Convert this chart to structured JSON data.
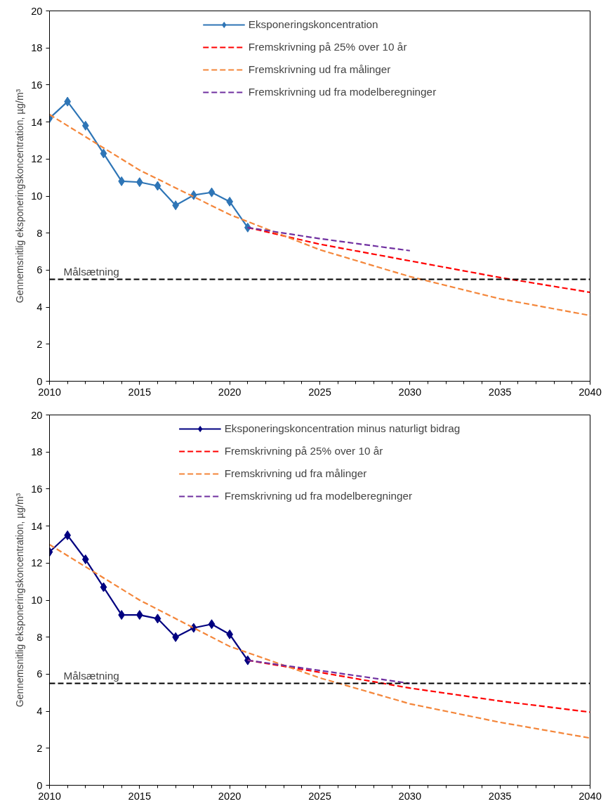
{
  "chart_data": [
    {
      "type": "line",
      "ylabel": "Gennemsnitlig eksponeringskoncentration, µg/m³",
      "xlim": [
        2010,
        2040
      ],
      "xticks": [
        2010,
        2015,
        2020,
        2025,
        2030,
        2035,
        2040
      ],
      "ylim": [
        0,
        20
      ],
      "yticks": [
        0,
        2,
        4,
        6,
        8,
        10,
        12,
        14,
        16,
        18,
        20
      ],
      "grid": false,
      "legend": "top",
      "series": [
        {
          "name": "Eksponeringskoncentration",
          "color": "#2e75b6",
          "marker": "diamond",
          "line_style": "solid",
          "x": [
            2010,
            2011,
            2012,
            2013,
            2014,
            2015,
            2016,
            2017,
            2018,
            2019,
            2020,
            2021
          ],
          "values": [
            14.2,
            15.1,
            13.8,
            12.3,
            10.8,
            10.75,
            10.55,
            9.5,
            10.05,
            10.2,
            9.7,
            8.3
          ]
        },
        {
          "name": "Fremskrivning på 25% over 10 år",
          "color": "#ff0000",
          "marker": "none",
          "line_style": "dashed",
          "x": [
            2021,
            2025,
            2030,
            2035,
            2040
          ],
          "values": [
            8.3,
            7.4,
            6.5,
            5.6,
            4.8
          ]
        },
        {
          "name": "Fremskrivning ud fra målinger",
          "color": "#f4863a",
          "marker": "none",
          "line_style": "dashed",
          "x": [
            2010,
            2015,
            2020,
            2025,
            2030,
            2035,
            2040
          ],
          "values": [
            14.4,
            11.4,
            9.0,
            7.1,
            5.65,
            4.45,
            3.55
          ]
        },
        {
          "name": "Fremskrivning ud fra modelberegninger",
          "color": "#7030a0",
          "marker": "none",
          "line_style": "dashed",
          "x": [
            2021,
            2025,
            2030
          ],
          "values": [
            8.3,
            7.7,
            7.05
          ]
        }
      ],
      "ref_lines": [
        {
          "axis": "y",
          "value": 5.5,
          "label": "Målsætning",
          "color": "#000000",
          "line_style": "dashed"
        }
      ]
    },
    {
      "type": "line",
      "ylabel": "Gennemsnitlig eksponeringskoncentration, µg/m³",
      "xlim": [
        2010,
        2040
      ],
      "xticks": [
        2010,
        2015,
        2020,
        2025,
        2030,
        2035,
        2040
      ],
      "ylim": [
        0,
        20
      ],
      "yticks": [
        0,
        2,
        4,
        6,
        8,
        10,
        12,
        14,
        16,
        18,
        20
      ],
      "grid": false,
      "legend": "top",
      "series": [
        {
          "name": "Eksponeringskoncentration minus naturligt bidrag",
          "color": "#000080",
          "marker": "diamond",
          "line_style": "solid",
          "x": [
            2010,
            2011,
            2012,
            2013,
            2014,
            2015,
            2016,
            2017,
            2018,
            2019,
            2020,
            2021
          ],
          "values": [
            12.6,
            13.5,
            12.2,
            10.7,
            9.2,
            9.2,
            9.0,
            8.0,
            8.5,
            8.7,
            8.15,
            6.75
          ]
        },
        {
          "name": "Fremskrivning på 25% over 10 år",
          "color": "#ff0000",
          "marker": "none",
          "line_style": "dashed",
          "x": [
            2021,
            2025,
            2030,
            2035,
            2040
          ],
          "values": [
            6.75,
            6.1,
            5.25,
            4.55,
            3.95
          ]
        },
        {
          "name": "Fremskrivning ud fra målinger",
          "color": "#f4863a",
          "marker": "none",
          "line_style": "dashed",
          "x": [
            2010,
            2015,
            2020,
            2025,
            2030,
            2035,
            2040
          ],
          "values": [
            13.0,
            10.0,
            7.5,
            5.8,
            4.4,
            3.4,
            2.55
          ]
        },
        {
          "name": "Fremskrivning ud fra modelberegninger",
          "color": "#7030a0",
          "marker": "none",
          "line_style": "dashed",
          "x": [
            2021,
            2025,
            2030
          ],
          "values": [
            6.75,
            6.2,
            5.5
          ]
        }
      ],
      "ref_lines": [
        {
          "axis": "y",
          "value": 5.5,
          "label": "Målsætning",
          "color": "#000000",
          "line_style": "dashed"
        }
      ]
    }
  ]
}
